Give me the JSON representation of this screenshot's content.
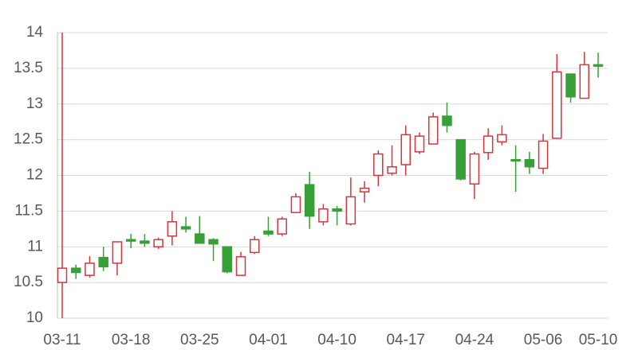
{
  "chart_data": {
    "type": "candlestick",
    "categories": [
      "03-11",
      null,
      null,
      null,
      null,
      "03-18",
      null,
      null,
      null,
      null,
      "03-25",
      null,
      null,
      null,
      null,
      "04-01",
      null,
      null,
      null,
      null,
      "04-10",
      null,
      null,
      null,
      null,
      "04-17",
      null,
      null,
      null,
      null,
      "04-24",
      null,
      null,
      null,
      null,
      "05-06",
      null,
      null,
      null,
      "05-10"
    ],
    "open": [
      10.5,
      10.7,
      10.6,
      10.85,
      10.77,
      11.1,
      11.08,
      11.0,
      11.15,
      11.28,
      11.18,
      11.1,
      11.0,
      10.6,
      10.92,
      11.22,
      11.18,
      11.48,
      11.87,
      11.35,
      11.53,
      11.32,
      11.77,
      12.0,
      12.03,
      12.15,
      12.33,
      12.44,
      12.83,
      12.5,
      11.88,
      12.32,
      12.47,
      12.22,
      12.22,
      12.1,
      12.52,
      13.42,
      13.08,
      13.55
    ],
    "high": [
      14,
      10.75,
      10.87,
      11.0,
      11.07,
      11.18,
      11.18,
      11.13,
      11.5,
      11.42,
      11.43,
      11.12,
      11.0,
      10.93,
      11.15,
      11.42,
      11.42,
      11.75,
      12.05,
      11.6,
      11.57,
      11.97,
      11.92,
      12.35,
      12.42,
      12.7,
      12.6,
      12.88,
      13.02,
      12.5,
      12.33,
      12.66,
      12.7,
      12.42,
      12.33,
      12.58,
      13.7,
      13.42,
      13.73,
      13.72
    ],
    "low": [
      10,
      10.55,
      10.57,
      10.66,
      10.6,
      10.98,
      11.0,
      10.97,
      11.02,
      11.2,
      11.05,
      10.8,
      10.63,
      10.6,
      10.9,
      11.15,
      11.15,
      11.48,
      11.25,
      11.3,
      11.3,
      11.3,
      11.62,
      11.85,
      12.0,
      12.0,
      12.3,
      12.44,
      12.6,
      11.93,
      11.67,
      12.22,
      12.42,
      11.77,
      12.02,
      12.02,
      12.52,
      13.02,
      13.08,
      13.37
    ],
    "close": [
      10.7,
      10.64,
      10.77,
      10.72,
      11.07,
      11.08,
      11.05,
      11.1,
      11.35,
      11.25,
      11.05,
      11.04,
      10.65,
      10.86,
      11.1,
      11.18,
      11.39,
      11.7,
      11.43,
      11.53,
      11.5,
      11.7,
      11.82,
      12.3,
      12.12,
      12.57,
      12.55,
      12.82,
      12.7,
      11.95,
      12.3,
      12.55,
      12.57,
      12.21,
      12.12,
      12.48,
      13.45,
      13.1,
      13.55,
      13.53
    ],
    "up_color": "#d6363e",
    "down_color": "#37a037",
    "ylim": [
      10,
      14
    ],
    "yticks": [
      10,
      10.5,
      11,
      11.5,
      12,
      12.5,
      13,
      13.5,
      14
    ],
    "grid": true
  }
}
